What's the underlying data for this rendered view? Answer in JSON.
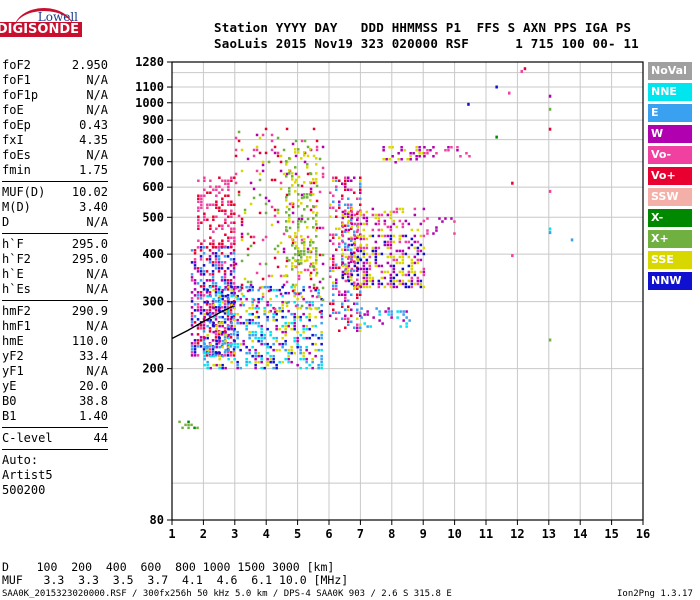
{
  "logo": {
    "line1": "Lowell",
    "line2": "DIGISONDE"
  },
  "header": {
    "line1": "Station YYYY DAY   DDD HHMMSS P1  FFS S AXN PPS IGA PS",
    "line2": "SaoLuis 2015 Nov19 323 020000 RSF      1 715 100 00- 11"
  },
  "params_group1": [
    {
      "label": "foF2",
      "value": "2.950"
    },
    {
      "label": "foF1",
      "value": "N/A"
    },
    {
      "label": "foF1p",
      "value": "N/A"
    },
    {
      "label": "foE",
      "value": "N/A"
    },
    {
      "label": "foEp",
      "value": "0.43"
    },
    {
      "label": "fxI",
      "value": "4.35"
    },
    {
      "label": "foEs",
      "value": "N/A"
    },
    {
      "label": "fmin",
      "value": "1.75"
    }
  ],
  "params_group2": [
    {
      "label": "MUF(D)",
      "value": "10.02"
    },
    {
      "label": "M(D)",
      "value": "3.40"
    },
    {
      "label": "D",
      "value": "N/A"
    }
  ],
  "params_group3": [
    {
      "label": "h`F",
      "value": "295.0"
    },
    {
      "label": "h`F2",
      "value": "295.0"
    },
    {
      "label": "h`E",
      "value": "N/A"
    },
    {
      "label": "h`Es",
      "value": "N/A"
    }
  ],
  "params_group4": [
    {
      "label": "hmF2",
      "value": "290.9"
    },
    {
      "label": "hmF1",
      "value": "N/A"
    },
    {
      "label": "hmE",
      "value": "110.0"
    },
    {
      "label": "yF2",
      "value": "33.4"
    },
    {
      "label": "yF1",
      "value": "N/A"
    },
    {
      "label": "yE",
      "value": "20.0"
    },
    {
      "label": "B0",
      "value": "38.8"
    },
    {
      "label": "B1",
      "value": "1.40"
    }
  ],
  "params_group5": [
    {
      "label": "C-level",
      "value": "44"
    }
  ],
  "auto": {
    "line1": "Auto:",
    "line2": "Artist5",
    "line3": "500200"
  },
  "legend": [
    {
      "label": "NoVal",
      "color": "#a0a0a0"
    },
    {
      "label": "NNE",
      "color": "#00e5ee"
    },
    {
      "label": "E",
      "color": "#3aa0f0"
    },
    {
      "label": "W",
      "color": "#b000b0"
    },
    {
      "label": "Vo-",
      "color": "#f040a0"
    },
    {
      "label": "Vo+",
      "color": "#e80030"
    },
    {
      "label": "SSW",
      "color": "#f4b0a8"
    },
    {
      "label": "X-",
      "color": "#008800"
    },
    {
      "label": "X+",
      "color": "#70b040"
    },
    {
      "label": "SSE",
      "color": "#d8d800"
    },
    {
      "label": "NNW",
      "color": "#1010d0"
    }
  ],
  "footer": {
    "d_line": "D    100  200  400  600  800 1000 1500 3000 [km]",
    "muf_line": "MUF   3.3  3.3  3.5  3.7  4.1  4.6  6.1 10.0 [MHz]",
    "file_line": "SAA0K_2015323020000.RSF / 300fx256h 50 kHz 5.0 km / DPS-4 SAA0K 903 / 2.6 S 315.8 E",
    "version": "Ion2Png 1.3.17"
  },
  "chart_data": {
    "type": "scatter",
    "title": "",
    "xlabel": "",
    "ylabel": "",
    "xlim": [
      1,
      16
    ],
    "ylim": [
      80,
      1280
    ],
    "y_scale": "log",
    "grid": true,
    "x_ticks": [
      "1",
      "2",
      "3",
      "4",
      "5",
      "6",
      "7",
      "8",
      "9",
      "10",
      "11",
      "12",
      "13",
      "14",
      "15",
      "16"
    ],
    "y_ticks": [
      {
        "v": 80,
        "label": "80"
      },
      {
        "v": 200,
        "label": "200"
      },
      {
        "v": 300,
        "label": "300"
      },
      {
        "v": 400,
        "label": "400"
      },
      {
        "v": 500,
        "label": "500"
      },
      {
        "v": 600,
        "label": "600"
      },
      {
        "v": 700,
        "label": "700"
      },
      {
        "v": 800,
        "label": "800"
      },
      {
        "v": 900,
        "label": "900"
      },
      {
        "v": 1000,
        "label": "1000"
      },
      {
        "v": 1100,
        "label": "1100"
      },
      {
        "v": 1280,
        "label": "1280"
      }
    ],
    "trace_line": {
      "name": "",
      "x": [
        1.0,
        1.5,
        2.0,
        2.5,
        2.95
      ],
      "y": [
        240,
        252,
        266,
        280,
        292
      ]
    },
    "clusters": [
      {
        "x": [
          1.6,
          2.95
        ],
        "y": [
          215,
          420
        ],
        "colors": [
          "Vo+",
          "Vo-",
          "W",
          "E",
          "NNW"
        ],
        "density": 0.55
      },
      {
        "x": [
          1.8,
          3.0
        ],
        "y": [
          420,
          640
        ],
        "colors": [
          "Vo+",
          "Vo-"
        ],
        "density": 0.35
      },
      {
        "x": [
          2.0,
          5.8
        ],
        "y": [
          200,
          330
        ],
        "colors": [
          "NNW",
          "W",
          "E",
          "NNE",
          "SSE"
        ],
        "density": 0.4
      },
      {
        "x": [
          3.0,
          5.8
        ],
        "y": [
          280,
          860
        ],
        "colors": [
          "SSE",
          "X+",
          "Vo-",
          "W",
          "Vo+"
        ],
        "density": 0.12
      },
      {
        "x": [
          4.6,
          5.6
        ],
        "y": [
          350,
          760
        ],
        "colors": [
          "SSE",
          "X+"
        ],
        "density": 0.25
      },
      {
        "x": [
          6.0,
          7.0
        ],
        "y": [
          250,
          640
        ],
        "colors": [
          "W",
          "Vo-",
          "Vo+",
          "SSE",
          "E"
        ],
        "density": 0.35
      },
      {
        "x": [
          6.4,
          9.0
        ],
        "y": [
          330,
          450
        ],
        "colors": [
          "W",
          "SSE",
          "Vo-",
          "NNW"
        ],
        "density": 0.45
      },
      {
        "x": [
          6.4,
          9.0
        ],
        "y": [
          460,
          530
        ],
        "colors": [
          "W",
          "SSE",
          "Vo-"
        ],
        "density": 0.35
      },
      {
        "x": [
          7.7,
          9.0
        ],
        "y": [
          700,
          770
        ],
        "colors": [
          "SSE",
          "W"
        ],
        "density": 0.45
      },
      {
        "x": [
          9.0,
          10.5
        ],
        "y": [
          720,
          770
        ],
        "colors": [
          "W",
          "Vo-"
        ],
        "density": 0.25
      },
      {
        "x": [
          9.0,
          10.0
        ],
        "y": [
          450,
          500
        ],
        "colors": [
          "W",
          "Vo-"
        ],
        "density": 0.25
      },
      {
        "x": [
          7.0,
          8.6
        ],
        "y": [
          260,
          290
        ],
        "colors": [
          "E",
          "NNE",
          "W"
        ],
        "density": 0.3
      },
      {
        "x": [
          1.2,
          1.8
        ],
        "y": [
          140,
          146
        ],
        "colors": [
          "X+",
          "X-"
        ],
        "density": 0.4
      }
    ],
    "isolated_points": [
      {
        "x": 11.3,
        "y": 1110,
        "c": "NNW"
      },
      {
        "x": 11.7,
        "y": 1070,
        "c": "Vo-"
      },
      {
        "x": 12.2,
        "y": 1240,
        "c": "Vo+"
      },
      {
        "x": 12.1,
        "y": 1220,
        "c": "Vo-"
      },
      {
        "x": 13.0,
        "y": 1050,
        "c": "W"
      },
      {
        "x": 13.0,
        "y": 970,
        "c": "X+"
      },
      {
        "x": 13.0,
        "y": 860,
        "c": "Vo+"
      },
      {
        "x": 11.3,
        "y": 820,
        "c": "X-"
      },
      {
        "x": 10.4,
        "y": 1000,
        "c": "NNW"
      },
      {
        "x": 11.8,
        "y": 620,
        "c": "Vo+"
      },
      {
        "x": 13.0,
        "y": 590,
        "c": "Vo-"
      },
      {
        "x": 13.0,
        "y": 470,
        "c": "NNE"
      },
      {
        "x": 13.0,
        "y": 460,
        "c": "E"
      },
      {
        "x": 13.7,
        "y": 440,
        "c": "E"
      },
      {
        "x": 11.8,
        "y": 400,
        "c": "Vo-"
      },
      {
        "x": 13.0,
        "y": 240,
        "c": "X+"
      }
    ]
  }
}
